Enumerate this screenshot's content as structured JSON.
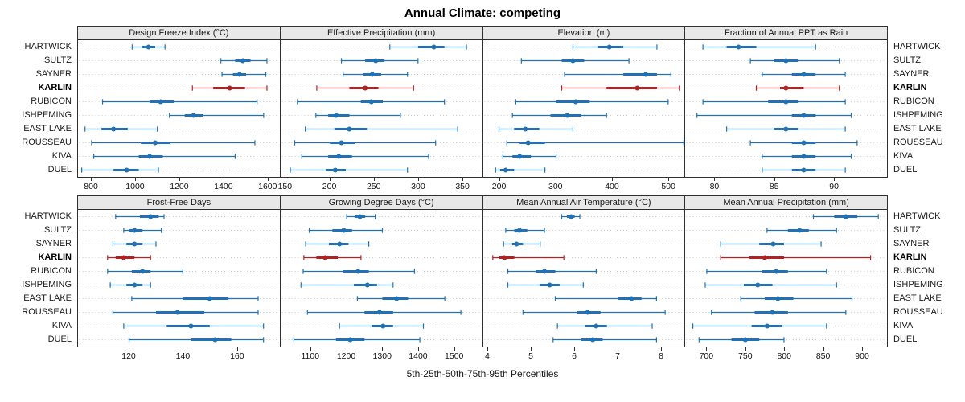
{
  "chart_data": {
    "type": "dotplot-percentiles",
    "title": "Annual Climate: competing",
    "caption": "5th-25th-50th-75th-95th Percentiles",
    "sites": [
      "HARTWICK",
      "SULTZ",
      "SAYNER",
      "KARLIN",
      "RUBICON",
      "ISHPEMING",
      "EAST LAKE",
      "ROUSSEAU",
      "KIVA",
      "DUEL"
    ],
    "highlight_site": "KARLIN",
    "percentiles": [
      5,
      25,
      50,
      75,
      95
    ],
    "colors": {
      "normal": "#2171b5",
      "highlight": "#b22222",
      "grid": "#c9c9c9",
      "strip_bg": "#e8e8e8",
      "border": "#2f2f2f"
    },
    "layout": {
      "rows": 2,
      "cols": 4,
      "grid": "dotted-horizontal",
      "legend": "none"
    },
    "panels": [
      {
        "title": "Design Freeze Index (°C)",
        "row": 0,
        "xlim": [
          738,
          1658
        ],
        "ticks": [
          800,
          1000,
          1200,
          1400,
          1600
        ],
        "data": [
          [
            985,
            1030,
            1060,
            1090,
            1135
          ],
          [
            1390,
            1455,
            1490,
            1525,
            1600
          ],
          [
            1395,
            1445,
            1475,
            1505,
            1595
          ],
          [
            1260,
            1355,
            1430,
            1500,
            1600
          ],
          [
            850,
            1065,
            1115,
            1175,
            1555
          ],
          [
            1155,
            1225,
            1265,
            1310,
            1585
          ],
          [
            770,
            845,
            900,
            965,
            1100
          ],
          [
            800,
            1025,
            1090,
            1160,
            1545
          ],
          [
            810,
            1015,
            1065,
            1125,
            1455
          ],
          [
            755,
            900,
            960,
            1015,
            1105
          ]
        ]
      },
      {
        "title": "Effective Precipitation (mm)",
        "row": 0,
        "xlim": [
          144,
          373
        ],
        "ticks": [
          150,
          200,
          250,
          300,
          350
        ],
        "data": [
          [
            268,
            300,
            318,
            330,
            355
          ],
          [
            213,
            240,
            252,
            262,
            300
          ],
          [
            215,
            238,
            248,
            258,
            288
          ],
          [
            185,
            222,
            240,
            255,
            295
          ],
          [
            163,
            235,
            247,
            260,
            330
          ],
          [
            184,
            198,
            207,
            222,
            280
          ],
          [
            172,
            205,
            222,
            242,
            345
          ],
          [
            160,
            200,
            213,
            228,
            320
          ],
          [
            168,
            198,
            210,
            225,
            312
          ],
          [
            155,
            195,
            206,
            218,
            288
          ]
        ]
      },
      {
        "title": "Elevation (m)",
        "row": 0,
        "xlim": [
          170,
          530
        ],
        "ticks": [
          200,
          300,
          400,
          500
        ],
        "data": [
          [
            330,
            375,
            395,
            420,
            480
          ],
          [
            238,
            310,
            330,
            350,
            430
          ],
          [
            315,
            420,
            460,
            480,
            505
          ],
          [
            310,
            390,
            445,
            480,
            520
          ],
          [
            228,
            300,
            335,
            360,
            500
          ],
          [
            222,
            290,
            320,
            345,
            390
          ],
          [
            198,
            225,
            245,
            270,
            330
          ],
          [
            212,
            235,
            250,
            280,
            528
          ],
          [
            205,
            222,
            235,
            255,
            300
          ],
          [
            192,
            200,
            210,
            225,
            280
          ]
        ]
      },
      {
        "title": "Fraction of Annual PPT as Rain",
        "row": 0,
        "xlim": [
          77.5,
          94.5
        ],
        "ticks": [
          80,
          85,
          90
        ],
        "data": [
          [
            79,
            81,
            82,
            83.5,
            88.5
          ],
          [
            83,
            85,
            86,
            87,
            90.5
          ],
          [
            84,
            86.5,
            87.5,
            88.5,
            91
          ],
          [
            83.5,
            85.5,
            86,
            87.5,
            90.5
          ],
          [
            79,
            84.5,
            86,
            87,
            91
          ],
          [
            78.5,
            86.5,
            87.5,
            88.5,
            91.5
          ],
          [
            81,
            85,
            86,
            87,
            91
          ],
          [
            83,
            86.5,
            87.5,
            88.5,
            92
          ],
          [
            84,
            86.5,
            87.5,
            88.5,
            91.5
          ],
          [
            84,
            86.5,
            87.5,
            88.5,
            91
          ]
        ]
      },
      {
        "title": "Frost-Free Days",
        "row": 1,
        "xlim": [
          101,
          176
        ],
        "ticks": [
          120,
          140,
          160
        ],
        "data": [
          [
            115,
            124,
            128,
            131,
            133
          ],
          [
            118,
            120,
            122,
            125,
            132
          ],
          [
            114,
            119,
            122,
            125,
            130
          ],
          [
            112,
            115,
            118,
            122,
            128
          ],
          [
            112,
            121,
            125,
            128,
            140
          ],
          [
            113,
            119,
            122,
            125,
            128
          ],
          [
            121,
            140,
            150,
            157,
            168
          ],
          [
            114,
            130,
            138,
            148,
            168
          ],
          [
            118,
            134,
            143,
            150,
            170
          ],
          [
            120,
            143,
            152,
            158,
            170
          ]
        ]
      },
      {
        "title": "Growing Degree Days (°C)",
        "row": 1,
        "xlim": [
          1015,
          1580
        ],
        "ticks": [
          1100,
          1200,
          1300,
          1400,
          1500
        ],
        "data": [
          [
            1200,
            1222,
            1237,
            1252,
            1280
          ],
          [
            1095,
            1160,
            1192,
            1215,
            1300
          ],
          [
            1085,
            1150,
            1180,
            1205,
            1262
          ],
          [
            1080,
            1115,
            1140,
            1175,
            1240
          ],
          [
            1078,
            1190,
            1232,
            1262,
            1390
          ],
          [
            1072,
            1220,
            1258,
            1285,
            1330
          ],
          [
            1230,
            1300,
            1340,
            1372,
            1475
          ],
          [
            1090,
            1250,
            1292,
            1330,
            1520
          ],
          [
            1180,
            1270,
            1302,
            1330,
            1415
          ],
          [
            1052,
            1170,
            1210,
            1250,
            1405
          ]
        ]
      },
      {
        "title": "Mean Annual Air Temperature (°C)",
        "row": 1,
        "xlim": [
          3.88,
          8.56
        ],
        "ticks": [
          4,
          5,
          6,
          7,
          8
        ],
        "data": [
          [
            5.7,
            5.82,
            5.92,
            6.0,
            6.12
          ],
          [
            4.4,
            4.6,
            4.72,
            4.9,
            5.3
          ],
          [
            4.35,
            4.55,
            4.65,
            4.8,
            5.2
          ],
          [
            4.1,
            4.25,
            4.37,
            4.6,
            5.75
          ],
          [
            4.45,
            5.1,
            5.3,
            5.55,
            6.5
          ],
          [
            4.45,
            5.2,
            5.42,
            5.65,
            6.2
          ],
          [
            5.55,
            7.0,
            7.32,
            7.55,
            7.9
          ],
          [
            4.8,
            6.05,
            6.3,
            6.6,
            8.1
          ],
          [
            5.6,
            6.25,
            6.5,
            6.75,
            7.8
          ],
          [
            5.5,
            6.15,
            6.42,
            6.65,
            7.9
          ]
        ]
      },
      {
        "title": "Mean Annual Precipitation (mm)",
        "row": 1,
        "xlim": [
          672,
          933
        ],
        "ticks": [
          700,
          750,
          800,
          850,
          900
        ],
        "data": [
          [
            838,
            865,
            880,
            895,
            922
          ],
          [
            778,
            805,
            820,
            832,
            868
          ],
          [
            718,
            768,
            786,
            800,
            848
          ],
          [
            718,
            755,
            775,
            800,
            912
          ],
          [
            700,
            772,
            790,
            805,
            855
          ],
          [
            698,
            748,
            766,
            785,
            868
          ],
          [
            744,
            775,
            792,
            812,
            888
          ],
          [
            706,
            762,
            785,
            805,
            880
          ],
          [
            682,
            758,
            778,
            798,
            855
          ],
          [
            690,
            732,
            750,
            768,
            800
          ]
        ]
      }
    ]
  }
}
